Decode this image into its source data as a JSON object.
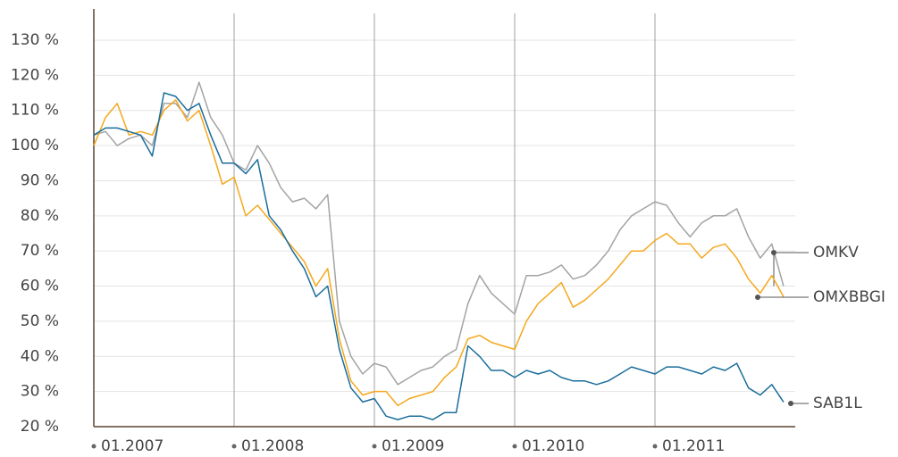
{
  "chart_data": {
    "type": "line",
    "x": [
      "01.2007",
      "02.2007",
      "03.2007",
      "04.2007",
      "05.2007",
      "06.2007",
      "07.2007",
      "08.2007",
      "09.2007",
      "10.2007",
      "11.2007",
      "12.2007",
      "01.2008",
      "02.2008",
      "03.2008",
      "04.2008",
      "05.2008",
      "06.2008",
      "07.2008",
      "08.2008",
      "09.2008",
      "10.2008",
      "11.2008",
      "12.2008",
      "01.2009",
      "02.2009",
      "03.2009",
      "04.2009",
      "05.2009",
      "06.2009",
      "07.2009",
      "08.2009",
      "09.2009",
      "10.2009",
      "11.2009",
      "12.2009",
      "01.2010",
      "02.2010",
      "03.2010",
      "04.2010",
      "05.2010",
      "06.2010",
      "07.2010",
      "08.2010",
      "09.2010",
      "10.2010",
      "11.2010",
      "12.2010",
      "01.2011",
      "02.2011",
      "03.2011",
      "04.2011",
      "05.2011",
      "06.2011",
      "07.2011",
      "08.2011",
      "09.2011",
      "10.2011",
      "11.2011",
      "12.2011"
    ],
    "series": [
      {
        "name": "OMKV",
        "color": "#a3a3a3",
        "values": [
          103,
          104,
          100,
          102,
          103,
          100,
          112,
          112,
          108,
          118,
          108,
          103,
          95,
          93,
          100,
          95,
          88,
          84,
          85,
          82,
          86,
          50,
          40,
          35,
          38,
          37,
          32,
          34,
          36,
          37,
          40,
          42,
          55,
          63,
          58,
          55,
          52,
          63,
          63,
          64,
          66,
          62,
          63,
          66,
          70,
          76,
          80,
          82,
          84,
          83,
          78,
          74,
          78,
          80,
          80,
          82,
          74,
          68,
          72,
          60
        ]
      },
      {
        "name": "OMXBBGI",
        "color": "#f4a81d",
        "values": [
          100,
          108,
          112,
          103,
          104,
          103,
          110,
          113,
          107,
          110,
          100,
          89,
          91,
          80,
          83,
          79,
          75,
          71,
          67,
          60,
          65,
          45,
          33,
          29,
          30,
          30,
          26,
          28,
          29,
          30,
          34,
          37,
          45,
          46,
          44,
          43,
          42,
          50,
          55,
          58,
          61,
          54,
          56,
          59,
          62,
          66,
          70,
          70,
          73,
          75,
          72,
          72,
          68,
          71,
          72,
          68,
          62,
          58,
          63,
          57
        ]
      },
      {
        "name": "SAB1L",
        "color": "#1a6d9b",
        "values": [
          103,
          105,
          105,
          104,
          103,
          97,
          115,
          114,
          110,
          112,
          103,
          95,
          95,
          92,
          96,
          80,
          76,
          70,
          65,
          57,
          60,
          42,
          31,
          27,
          28,
          23,
          22,
          23,
          23,
          22,
          24,
          24,
          43,
          40,
          36,
          36,
          34,
          36,
          35,
          36,
          34,
          33,
          33,
          32,
          33,
          35,
          37,
          36,
          35,
          37,
          37,
          36,
          35,
          37,
          36,
          38,
          31,
          29,
          32,
          27
        ]
      }
    ],
    "xlim": [
      "01.2007",
      "01.2012"
    ],
    "xticks": [
      "01.2007",
      "01.2008",
      "01.2009",
      "01.2010",
      "01.2011"
    ],
    "ylim": [
      20,
      130
    ],
    "yticks": [
      {
        "value": 20,
        "label": "20 %"
      },
      {
        "value": 30,
        "label": "30 %"
      },
      {
        "value": 40,
        "label": "40 %"
      },
      {
        "value": 50,
        "label": "50 %"
      },
      {
        "value": 60,
        "label": "60 %"
      },
      {
        "value": 70,
        "label": "70 %"
      },
      {
        "value": 80,
        "label": "80 %"
      },
      {
        "value": 90,
        "label": "90 %"
      },
      {
        "value": 100,
        "label": "100 %"
      },
      {
        "value": 110,
        "label": "110 %"
      },
      {
        "value": 120,
        "label": "120 %"
      },
      {
        "value": 130,
        "label": "130 %"
      }
    ],
    "grid": true
  }
}
